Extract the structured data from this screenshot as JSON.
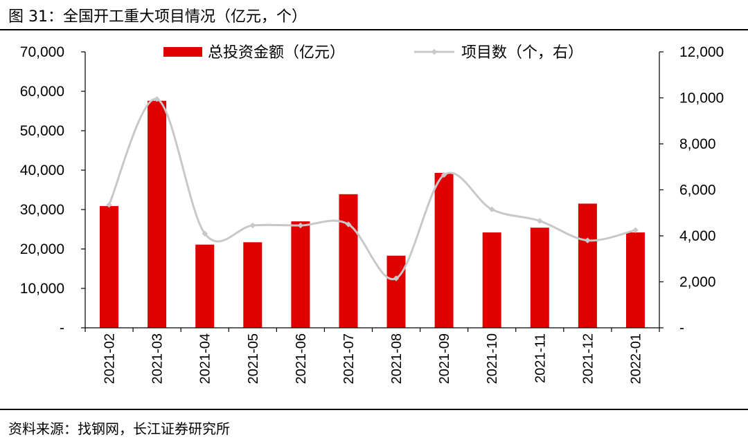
{
  "figure": {
    "title": "图 31：全国开工重大项目情况（亿元，个）",
    "source": "资料来源：找钢网，长江证券研究所"
  },
  "colors": {
    "bar": "#e00000",
    "line": "#c8c8c8",
    "axis": "#000000"
  },
  "chart_data": {
    "type": "bar+line",
    "title": "全国开工重大项目情况（亿元，个）",
    "categories": [
      "2021-02",
      "2021-03",
      "2021-04",
      "2021-05",
      "2021-06",
      "2021-07",
      "2021-08",
      "2021-09",
      "2021-10",
      "2021-11",
      "2021-12",
      "2022-01"
    ],
    "series": [
      {
        "name": "总投资金额（亿元）",
        "type": "bar",
        "axis": "left",
        "values": [
          30900,
          57600,
          21100,
          21700,
          27000,
          33900,
          18300,
          39300,
          24200,
          25400,
          31500,
          24200
        ]
      },
      {
        "name": "项目数（个，右）",
        "type": "line",
        "axis": "right",
        "values": [
          5350,
          9950,
          4100,
          4450,
          4450,
          4500,
          2150,
          6650,
          5150,
          4650,
          3800,
          4250
        ]
      }
    ],
    "y_left": {
      "range": [
        0,
        70000
      ],
      "ticks": [
        0,
        10000,
        20000,
        30000,
        40000,
        50000,
        60000,
        70000
      ],
      "tick_labels": [
        "-",
        "10,000",
        "20,000",
        "30,000",
        "40,000",
        "50,000",
        "60,000",
        "70,000"
      ]
    },
    "y_right": {
      "range": [
        0,
        12000
      ],
      "ticks": [
        0,
        2000,
        4000,
        6000,
        8000,
        10000,
        12000
      ],
      "tick_labels": [
        "-",
        "2,000",
        "4,000",
        "6,000",
        "8,000",
        "10,000",
        "12,000"
      ]
    },
    "legend": [
      "总投资金额（亿元）",
      "项目数（个，右）"
    ],
    "legend_position": "top",
    "grid": false
  }
}
